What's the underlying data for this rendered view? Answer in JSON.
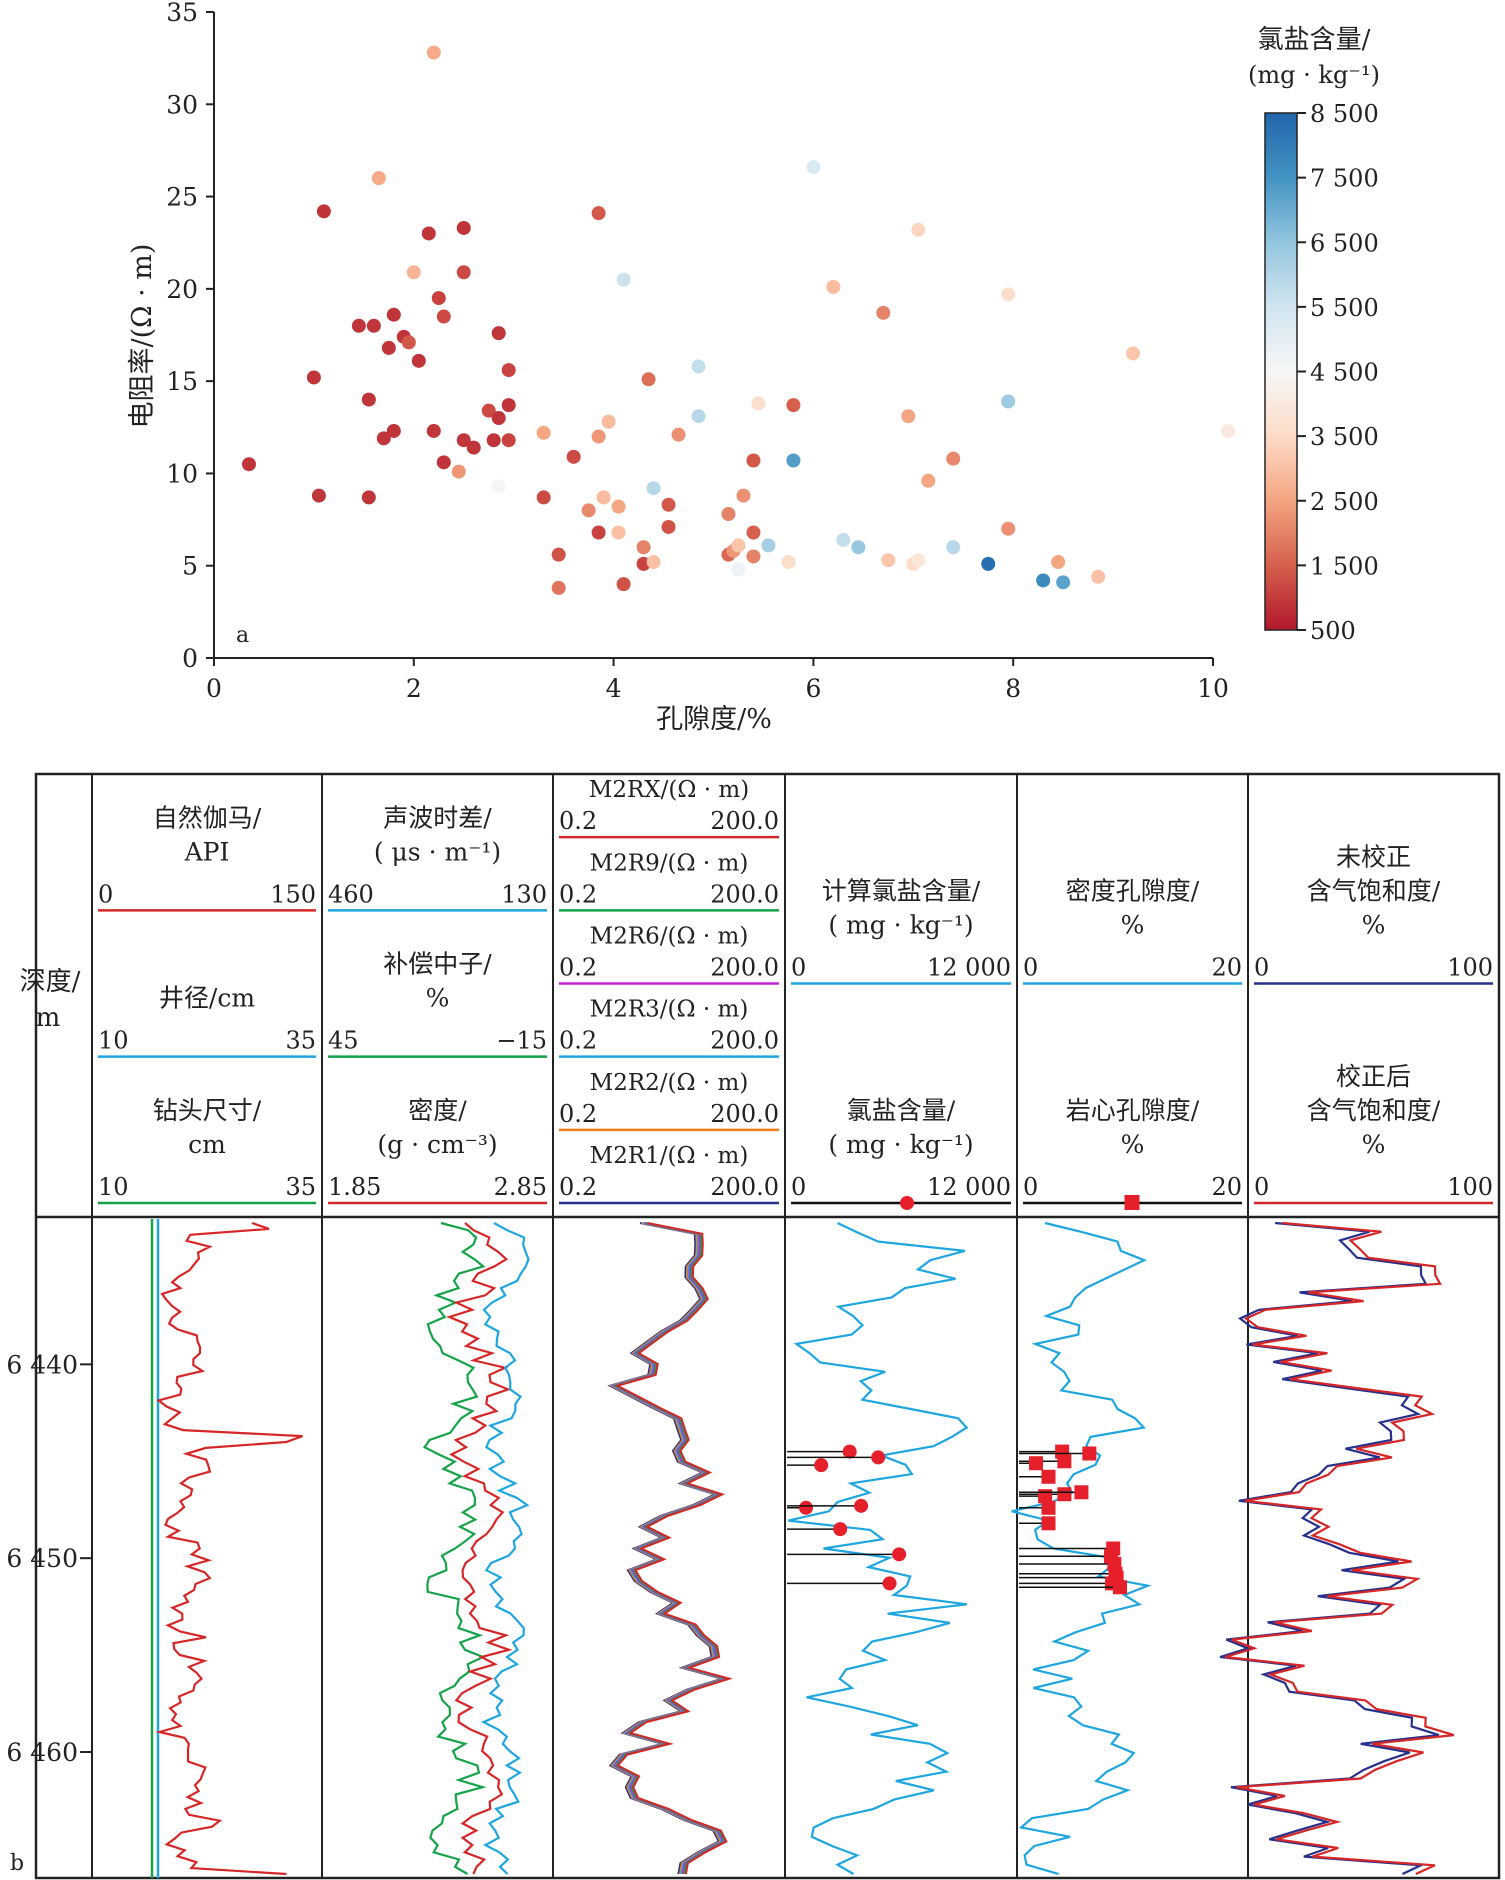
{
  "chart_data": [
    {
      "type": "scatter",
      "panel_label": "a",
      "xlabel": "孔隙度/%",
      "ylabel": "电阻率/(Ω · m)",
      "xlim": [
        0,
        10
      ],
      "ylim": [
        0,
        35
      ],
      "x_ticks": [
        "0",
        "2",
        "4",
        "6",
        "8",
        "10"
      ],
      "y_ticks": [
        "0",
        "5",
        "10",
        "15",
        "20",
        "25",
        "30",
        "35"
      ],
      "colorbar": {
        "title": "氯盐含量/",
        "unit": "(mg · kg⁻¹)",
        "range": [
          500,
          8500
        ],
        "ticks": [
          "500",
          "1 500",
          "2 500",
          "3 500",
          "4 500",
          "5 500",
          "6 500",
          "7 500",
          "8 500"
        ],
        "colors": [
          "#b2182b",
          "#d6604d",
          "#f4a582",
          "#fddbc7",
          "#f7f7f7",
          "#d1e5f0",
          "#92c5de",
          "#4393c3",
          "#2166ac"
        ]
      },
      "points": [
        [
          0.35,
          10.5,
          900
        ],
        [
          1.0,
          15.2,
          900
        ],
        [
          1.05,
          8.8,
          900
        ],
        [
          1.1,
          24.2,
          900
        ],
        [
          1.45,
          18.0,
          900
        ],
        [
          1.55,
          14.0,
          900
        ],
        [
          1.55,
          8.7,
          900
        ],
        [
          1.6,
          18.0,
          900
        ],
        [
          1.7,
          11.9,
          900
        ],
        [
          1.75,
          16.8,
          900
        ],
        [
          1.8,
          12.3,
          900
        ],
        [
          1.8,
          18.6,
          900
        ],
        [
          1.9,
          17.4,
          900
        ],
        [
          1.95,
          17.1,
          1400
        ],
        [
          2.05,
          16.1,
          900
        ],
        [
          2.15,
          23.0,
          900
        ],
        [
          2.2,
          12.3,
          900
        ],
        [
          2.25,
          19.5,
          1100
        ],
        [
          2.3,
          18.5,
          1200
        ],
        [
          2.3,
          10.6,
          900
        ],
        [
          2.5,
          23.3,
          900
        ],
        [
          2.5,
          11.8,
          900
        ],
        [
          2.5,
          20.9,
          1200
        ],
        [
          2.6,
          11.4,
          900
        ],
        [
          2.75,
          13.4,
          1200
        ],
        [
          2.8,
          11.8,
          900
        ],
        [
          2.85,
          17.6,
          900
        ],
        [
          2.85,
          13.0,
          900
        ],
        [
          2.95,
          11.8,
          1100
        ],
        [
          2.95,
          15.6,
          1100
        ],
        [
          2.95,
          13.7,
          900
        ],
        [
          1.65,
          26.0,
          2600
        ],
        [
          2.0,
          20.9,
          2800
        ],
        [
          2.2,
          32.8,
          2600
        ],
        [
          2.45,
          10.1,
          2300
        ],
        [
          2.85,
          9.3,
          4600
        ],
        [
          3.3,
          12.2,
          2500
        ],
        [
          3.3,
          8.7,
          1200
        ],
        [
          3.45,
          5.6,
          1300
        ],
        [
          3.45,
          3.8,
          1800
        ],
        [
          3.6,
          10.9,
          1200
        ],
        [
          3.75,
          8.0,
          2100
        ],
        [
          3.85,
          6.8,
          1100
        ],
        [
          3.85,
          12.0,
          2300
        ],
        [
          3.85,
          24.1,
          1400
        ],
        [
          3.9,
          8.7,
          2900
        ],
        [
          3.95,
          12.8,
          2900
        ],
        [
          4.05,
          6.8,
          3000
        ],
        [
          4.05,
          8.2,
          2500
        ],
        [
          4.1,
          4.0,
          1300
        ],
        [
          4.1,
          20.5,
          5600
        ],
        [
          4.3,
          5.1,
          1100
        ],
        [
          4.3,
          6.0,
          2000
        ],
        [
          4.35,
          15.1,
          1700
        ],
        [
          4.4,
          9.2,
          5900
        ],
        [
          4.4,
          5.2,
          3000
        ],
        [
          4.55,
          7.1,
          1300
        ],
        [
          4.55,
          8.3,
          1400
        ],
        [
          4.65,
          12.1,
          2200
        ],
        [
          4.85,
          15.8,
          5700
        ],
        [
          4.85,
          13.1,
          5900
        ],
        [
          5.15,
          7.8,
          2000
        ],
        [
          5.15,
          5.6,
          1600
        ],
        [
          5.2,
          5.8,
          2300
        ],
        [
          5.25,
          6.1,
          3100
        ],
        [
          5.25,
          4.8,
          4800
        ],
        [
          5.3,
          8.8,
          2200
        ],
        [
          5.4,
          10.7,
          1400
        ],
        [
          5.4,
          6.8,
          1500
        ],
        [
          5.4,
          5.5,
          2000
        ],
        [
          5.45,
          13.8,
          3600
        ],
        [
          5.55,
          6.1,
          6200
        ],
        [
          5.75,
          5.2,
          3600
        ],
        [
          5.8,
          10.7,
          7300
        ],
        [
          5.8,
          13.7,
          1500
        ],
        [
          6.0,
          26.6,
          5300
        ],
        [
          6.2,
          20.1,
          2900
        ],
        [
          6.3,
          6.4,
          5700
        ],
        [
          6.45,
          6.0,
          6400
        ],
        [
          6.7,
          18.7,
          2000
        ],
        [
          6.75,
          5.3,
          3100
        ],
        [
          6.95,
          13.1,
          2500
        ],
        [
          7.0,
          5.1,
          3500
        ],
        [
          7.05,
          23.2,
          3400
        ],
        [
          7.05,
          5.3,
          3900
        ],
        [
          7.15,
          9.6,
          2500
        ],
        [
          7.4,
          10.8,
          2100
        ],
        [
          7.4,
          6.0,
          5900
        ],
        [
          7.75,
          5.1,
          8300
        ],
        [
          7.95,
          19.7,
          3600
        ],
        [
          7.95,
          13.9,
          6300
        ],
        [
          7.95,
          7.0,
          2200
        ],
        [
          8.3,
          4.2,
          7700
        ],
        [
          8.45,
          5.2,
          2500
        ],
        [
          8.5,
          4.1,
          7200
        ],
        [
          8.85,
          4.4,
          3000
        ],
        [
          9.2,
          16.5,
          3100
        ],
        [
          10.15,
          12.3,
          4000
        ]
      ]
    },
    {
      "type": "line",
      "panel_label": "b",
      "depth_title": "深度/",
      "depth_unit": "m",
      "depth_range": [
        6432.5,
        6466.5
      ],
      "depth_ticks": [
        "6 440",
        "6 450",
        "6 460"
      ],
      "tracks": [
        {
          "rows": [
            {
              "title": "自然伽马/",
              "unit": "API",
              "min": "0",
              "max": "150",
              "color": "#d62728"
            },
            {
              "title": "井径/cm",
              "unit": "",
              "min": "10",
              "max": "35",
              "color": "#1fa6df"
            },
            {
              "title": "钻头尺寸/",
              "unit": "cm",
              "min": "10",
              "max": "35",
              "color": "#16a34a"
            }
          ]
        },
        {
          "rows": [
            {
              "title": "声波时差/",
              "unit": "( μs · m⁻¹)",
              "min": "460",
              "max": "130",
              "color": "#1fa6df"
            },
            {
              "title": "补偿中子/",
              "unit": "%",
              "min": "45",
              "max": "−15",
              "color": "#16a34a"
            },
            {
              "title": "密度/",
              "unit": "(g · cm⁻³)",
              "min": "1.85",
              "max": "2.85",
              "color": "#d62728"
            }
          ]
        },
        {
          "rows": [
            {
              "title": "M2RX/(Ω · m)",
              "min": "0.2",
              "max": "200.0",
              "color": "#d62728"
            },
            {
              "title": "M2R9/(Ω · m)",
              "min": "0.2",
              "max": "200.0",
              "color": "#16a34a"
            },
            {
              "title": "M2R6/(Ω · m)",
              "min": "0.2",
              "max": "200.0",
              "color": "#c026d3"
            },
            {
              "title": "M2R3/(Ω · m)",
              "min": "0.2",
              "max": "200.0",
              "color": "#1fa6df"
            },
            {
              "title": "M2R2/(Ω · m)",
              "min": "0.2",
              "max": "200.0",
              "color": "#ef7d1a"
            },
            {
              "title": "M2R1/(Ω · m)",
              "min": "0.2",
              "max": "200.0",
              "color": "#27308a"
            }
          ]
        },
        {
          "rows": [
            {
              "title": "计算氯盐含量/",
              "unit": "( mg · kg⁻¹)",
              "min": "0",
              "max": "12 000",
              "color": "#1fa6df"
            },
            {
              "title": "氯盐含量/",
              "unit": "( mg · kg⁻¹)",
              "min": "0",
              "max": "12 000",
              "color": "#111111",
              "marker": "circle"
            }
          ]
        },
        {
          "rows": [
            {
              "title": "密度孔隙度/",
              "unit": "%",
              "min": "0",
              "max": "20",
              "color": "#1fa6df"
            },
            {
              "title": "岩心孔隙度/",
              "unit": "%",
              "min": "0",
              "max": "20",
              "color": "#111111",
              "marker": "square"
            }
          ]
        },
        {
          "rows": [
            {
              "title": "未校正",
              "unit": "含气饱和度/",
              "unit2": "%",
              "min": "0",
              "max": "100",
              "color": "#27308a"
            },
            {
              "title": "校正后",
              "unit": "含气饱和度/",
              "unit2": "%",
              "min": "0",
              "max": "100",
              "color": "#d62728"
            }
          ]
        }
      ],
      "chloride_samples": [
        [
          6444.5,
          3300
        ],
        [
          6445.2,
          1800
        ],
        [
          6444.8,
          4800
        ],
        [
          6447.4,
          1000
        ],
        [
          6447.3,
          3900
        ],
        [
          6448.5,
          2800
        ],
        [
          6449.8,
          5900
        ],
        [
          6451.3,
          5400
        ]
      ],
      "core_porosity_samples": [
        [
          6444.5,
          3.8
        ],
        [
          6444.6,
          6.2
        ],
        [
          6445.0,
          4.0
        ],
        [
          6445.1,
          1.5
        ],
        [
          6445.8,
          2.6
        ],
        [
          6446.7,
          4.0
        ],
        [
          6446.8,
          2.3
        ],
        [
          6446.6,
          5.5
        ],
        [
          6447.4,
          2.6
        ],
        [
          6448.2,
          2.6
        ],
        [
          6449.5,
          8.3
        ],
        [
          6449.9,
          8.1
        ],
        [
          6450.3,
          8.4
        ],
        [
          6450.8,
          8.5
        ],
        [
          6451.0,
          8.6
        ],
        [
          6451.3,
          8.2
        ],
        [
          6451.5,
          8.9
        ]
      ]
    }
  ]
}
